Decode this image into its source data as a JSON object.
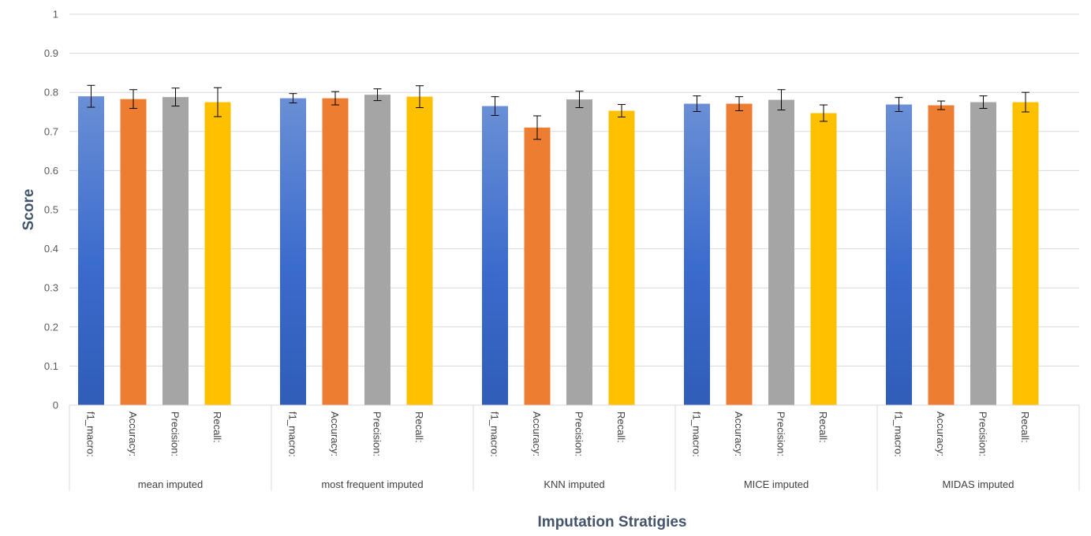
{
  "chart_data": {
    "type": "bar",
    "title": "",
    "xlabel": "Imputation Stratigies",
    "ylabel": "Score",
    "ylim": [
      0,
      1
    ],
    "yticks": [
      "0",
      "0.1",
      "0.2",
      "0.3",
      "0.4",
      "0.5",
      "0.6",
      "0.7",
      "0.8",
      "0.9",
      "1"
    ],
    "grid": true,
    "legend": "none",
    "metrics": [
      "f1_macro:",
      "Accuracy:",
      "Precision:",
      "Recall:"
    ],
    "colors": [
      "#3E6FCB",
      "#ED7D31",
      "#A5A5A5",
      "#FFC000"
    ],
    "groups": [
      {
        "name": "mean imputed",
        "values": [
          0.79,
          0.783,
          0.788,
          0.775
        ],
        "errors": [
          0.028,
          0.024,
          0.023,
          0.037
        ]
      },
      {
        "name": "most frequent imputed",
        "values": [
          0.785,
          0.785,
          0.794,
          0.789
        ],
        "errors": [
          0.012,
          0.017,
          0.015,
          0.028
        ]
      },
      {
        "name": "KNN imputed",
        "values": [
          0.765,
          0.71,
          0.782,
          0.753
        ],
        "errors": [
          0.024,
          0.03,
          0.021,
          0.016
        ]
      },
      {
        "name": "MICE imputed",
        "values": [
          0.771,
          0.771,
          0.781,
          0.747
        ],
        "errors": [
          0.02,
          0.018,
          0.026,
          0.021
        ]
      },
      {
        "name": "MIDAS imputed",
        "values": [
          0.769,
          0.767,
          0.775,
          0.775
        ],
        "errors": [
          0.018,
          0.011,
          0.016,
          0.025
        ]
      }
    ]
  }
}
